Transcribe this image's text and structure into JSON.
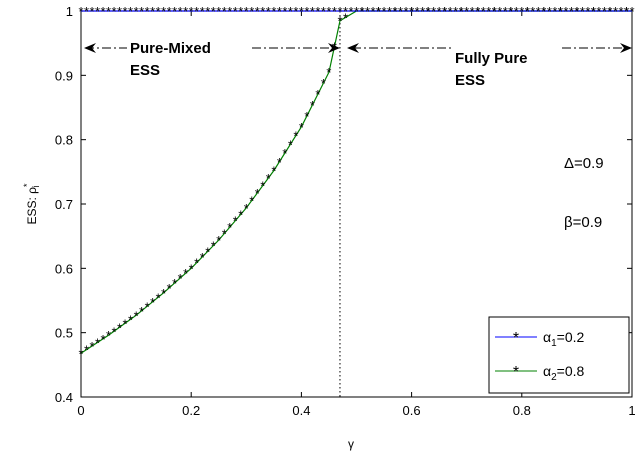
{
  "chart_data": {
    "type": "line",
    "xlabel": "γ",
    "ylabel": "ESS: ρ",
    "ylabel_sup": "*",
    "ylabel_sub": "i",
    "xlim": [
      0,
      1
    ],
    "ylim": [
      0.4,
      1
    ],
    "xticks": [
      0,
      0.2,
      0.4,
      0.6,
      0.8,
      1
    ],
    "xtick_labels": [
      "0",
      "0.2",
      "0.4",
      "0.6",
      "0.8",
      "1"
    ],
    "yticks": [
      0.4,
      0.5,
      0.6,
      0.7,
      0.8,
      0.9,
      1
    ],
    "ytick_labels": [
      "0.4",
      "0.5",
      "0.6",
      "0.7",
      "0.8",
      "0.9",
      "1"
    ],
    "grid": false,
    "legend_position": "bottom-right",
    "series": [
      {
        "name": "α1=0.2",
        "name_parts": [
          "α",
          "1",
          "=0.2"
        ],
        "color": "#0000ff",
        "marker": "*",
        "x": [
          0,
          0.1,
          0.2,
          0.3,
          0.4,
          0.47,
          0.5,
          0.6,
          0.7,
          0.8,
          0.9,
          1.0
        ],
        "y": [
          1,
          1,
          1,
          1,
          1,
          1,
          1,
          1,
          1,
          1,
          1,
          1
        ]
      },
      {
        "name": "α2=0.8",
        "name_parts": [
          "α",
          "2",
          "=0.8"
        ],
        "color": "#008000",
        "marker": "*",
        "x": [
          0,
          0.05,
          0.1,
          0.15,
          0.2,
          0.25,
          0.3,
          0.35,
          0.4,
          0.45,
          0.47,
          0.5,
          0.6,
          0.7,
          0.8,
          0.9,
          1.0
        ],
        "y": [
          0.468,
          0.496,
          0.527,
          0.562,
          0.6,
          0.644,
          0.694,
          0.752,
          0.82,
          0.905,
          0.985,
          1,
          1,
          1,
          1,
          1,
          1
        ]
      }
    ],
    "threshold_x": 0.47,
    "annotations": {
      "region_left_line1": "Pure-Mixed",
      "region_left_line2": "ESS",
      "region_right_line1": "Fully Pure",
      "region_right_line2": "ESS",
      "delta": "Δ=0.9",
      "beta": "β=0.9"
    }
  }
}
